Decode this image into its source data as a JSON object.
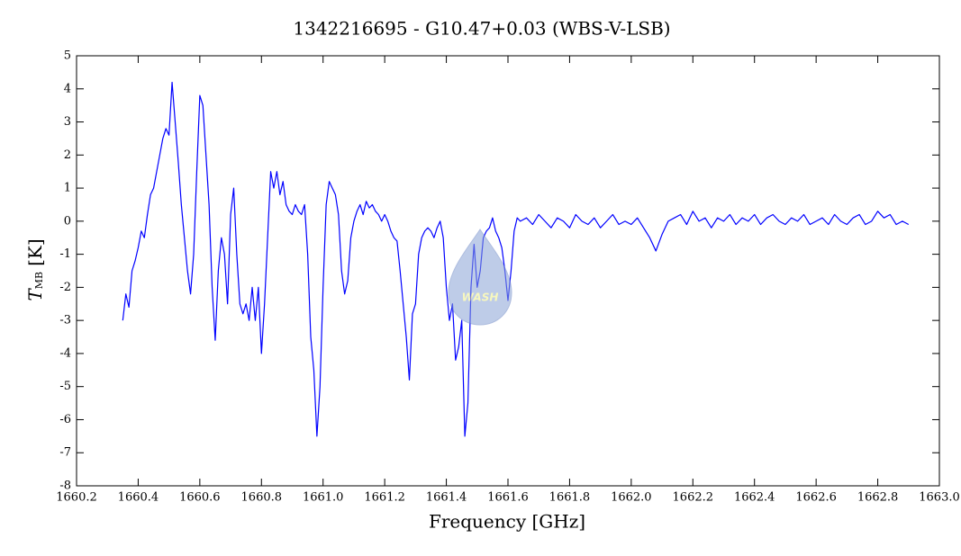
{
  "chart_data": {
    "type": "line",
    "title": "1342216695 - G10.47+0.03 (WBS-V-LSB)",
    "x_label": "Frequency [GHz]",
    "y_label": "T",
    "y_label_sub": "MB",
    "y_label_unit": "[K]",
    "watermark": "WASH",
    "color": "#0000ff",
    "x": [
      1660.35,
      1660.36,
      1660.37,
      1660.38,
      1660.39,
      1660.4,
      1660.41,
      1660.42,
      1660.43,
      1660.44,
      1660.45,
      1660.46,
      1660.47,
      1660.48,
      1660.49,
      1660.5,
      1660.51,
      1660.52,
      1660.53,
      1660.54,
      1660.55,
      1660.56,
      1660.57,
      1660.58,
      1660.59,
      1660.6,
      1660.61,
      1660.62,
      1660.63,
      1660.64,
      1660.65,
      1660.66,
      1660.67,
      1660.68,
      1660.69,
      1660.7,
      1660.71,
      1660.72,
      1660.73,
      1660.74,
      1660.75,
      1660.76,
      1660.77,
      1660.78,
      1660.79,
      1660.8,
      1660.81,
      1660.82,
      1660.83,
      1660.84,
      1660.85,
      1660.86,
      1660.87,
      1660.88,
      1660.89,
      1660.9,
      1660.91,
      1660.92,
      1660.93,
      1660.94,
      1660.95,
      1660.96,
      1660.97,
      1660.98,
      1660.99,
      1661.0,
      1661.01,
      1661.02,
      1661.03,
      1661.04,
      1661.05,
      1661.06,
      1661.07,
      1661.08,
      1661.09,
      1661.1,
      1661.11,
      1661.12,
      1661.13,
      1661.14,
      1661.15,
      1661.16,
      1661.17,
      1661.18,
      1661.19,
      1661.2,
      1661.21,
      1661.22,
      1661.23,
      1661.24,
      1661.25,
      1661.26,
      1661.27,
      1661.28,
      1661.29,
      1661.3,
      1661.31,
      1661.32,
      1661.33,
      1661.34,
      1661.35,
      1661.36,
      1661.37,
      1661.38,
      1661.39,
      1661.4,
      1661.41,
      1661.42,
      1661.43,
      1661.44,
      1661.45,
      1661.46,
      1661.47,
      1661.48,
      1661.49,
      1661.5,
      1661.51,
      1661.52,
      1661.53,
      1661.54,
      1661.55,
      1661.56,
      1661.57,
      1661.58,
      1661.59,
      1661.6,
      1661.61,
      1661.62,
      1661.63,
      1661.64,
      1661.66,
      1661.68,
      1661.7,
      1661.72,
      1661.74,
      1661.76,
      1661.78,
      1661.8,
      1661.82,
      1661.84,
      1661.86,
      1661.88,
      1661.9,
      1661.92,
      1661.94,
      1661.96,
      1661.98,
      1662.0,
      1662.02,
      1662.04,
      1662.06,
      1662.08,
      1662.1,
      1662.12,
      1662.14,
      1662.16,
      1662.18,
      1662.2,
      1662.22,
      1662.24,
      1662.26,
      1662.28,
      1662.3,
      1662.32,
      1662.34,
      1662.36,
      1662.38,
      1662.4,
      1662.42,
      1662.44,
      1662.46,
      1662.48,
      1662.5,
      1662.52,
      1662.54,
      1662.56,
      1662.58,
      1662.6,
      1662.62,
      1662.64,
      1662.66,
      1662.68,
      1662.7,
      1662.72,
      1662.74,
      1662.76,
      1662.78,
      1662.8,
      1662.82,
      1662.84,
      1662.86,
      1662.88,
      1662.9
    ],
    "values": [
      -3.0,
      -2.2,
      -2.6,
      -1.5,
      -1.2,
      -0.8,
      -0.3,
      -0.5,
      0.2,
      0.8,
      1.0,
      1.5,
      2.0,
      2.5,
      2.8,
      2.6,
      4.2,
      3.0,
      1.8,
      0.5,
      -0.5,
      -1.5,
      -2.2,
      -1.0,
      1.5,
      3.8,
      3.5,
      2.0,
      0.5,
      -2.0,
      -3.6,
      -1.5,
      -0.5,
      -1.0,
      -2.5,
      0.2,
      1.0,
      -1.0,
      -2.5,
      -2.8,
      -2.5,
      -3.0,
      -2.0,
      -3.0,
      -2.0,
      -4.0,
      -2.5,
      -0.5,
      1.5,
      1.0,
      1.5,
      0.8,
      1.2,
      0.5,
      0.3,
      0.2,
      0.5,
      0.3,
      0.2,
      0.5,
      -1.0,
      -3.5,
      -4.5,
      -6.5,
      -5.0,
      -2.0,
      0.5,
      1.2,
      1.0,
      0.8,
      0.2,
      -1.5,
      -2.2,
      -1.8,
      -0.5,
      0.0,
      0.3,
      0.5,
      0.2,
      0.6,
      0.4,
      0.5,
      0.3,
      0.2,
      0.0,
      0.2,
      0.0,
      -0.3,
      -0.5,
      -0.6,
      -1.5,
      -2.5,
      -3.5,
      -4.8,
      -2.8,
      -2.5,
      -1.0,
      -0.5,
      -0.3,
      -0.2,
      -0.3,
      -0.5,
      -0.2,
      0.0,
      -0.5,
      -2.0,
      -3.0,
      -2.5,
      -4.2,
      -3.8,
      -3.0,
      -6.5,
      -5.5,
      -2.0,
      -0.7,
      -2.0,
      -1.5,
      -0.5,
      -0.3,
      -0.2,
      0.1,
      -0.3,
      -0.5,
      -0.8,
      -1.5,
      -2.4,
      -1.5,
      -0.3,
      0.1,
      0.0,
      0.1,
      -0.1,
      0.2,
      0.0,
      -0.2,
      0.1,
      0.0,
      -0.2,
      0.2,
      0.0,
      -0.1,
      0.1,
      -0.2,
      0.0,
      0.2,
      -0.1,
      0.0,
      -0.1,
      0.1,
      -0.2,
      -0.5,
      -0.9,
      -0.4,
      0.0,
      0.1,
      0.2,
      -0.1,
      0.3,
      0.0,
      0.1,
      -0.2,
      0.1,
      0.0,
      0.2,
      -0.1,
      0.1,
      0.0,
      0.2,
      -0.1,
      0.1,
      0.2,
      0.0,
      -0.1,
      0.1,
      0.0,
      0.2,
      -0.1,
      0.0,
      0.1,
      -0.1,
      0.2,
      0.0,
      -0.1,
      0.1,
      0.2,
      -0.1,
      0.0,
      0.3,
      0.1,
      0.2,
      -0.1,
      0.0,
      -0.1
    ],
    "xlim": [
      1660.2,
      1663.0
    ],
    "xticks": [
      1660.2,
      1660.4,
      1660.6,
      1660.8,
      {
        "value": 1661,
        "label": "1661.0"
      },
      1661.2,
      1661.4,
      1661.6,
      1661.8,
      {
        "value": 1662,
        "label": "1662.0"
      },
      1662.2,
      1662.4,
      1662.6,
      1662.8,
      {
        "value": 1663,
        "label": "1663.0"
      }
    ],
    "ylim": [
      -8,
      5
    ],
    "yticks": [
      -8,
      -7,
      -6,
      -5,
      -4,
      -3,
      -2,
      -1,
      0,
      1,
      2,
      3,
      4,
      5
    ],
    "grid": false
  }
}
